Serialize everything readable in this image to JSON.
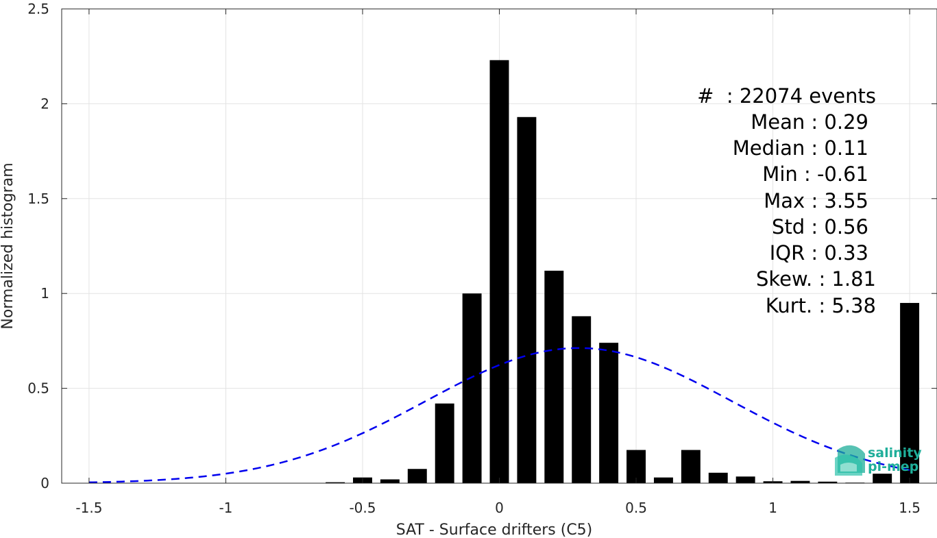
{
  "chart_data": {
    "type": "bar",
    "xlabel": "SAT - Surface drifters (C5)",
    "ylabel": "Normalized histogram",
    "xlim": [
      -1.6,
      1.6
    ],
    "ylim": [
      0,
      2.5
    ],
    "grid": true,
    "x_ticks": [
      -1.5,
      -1,
      -0.5,
      0,
      0.5,
      1,
      1.5
    ],
    "x_tick_labels": [
      "-1.5",
      "-1",
      "-0.5",
      "0",
      "0.5",
      "1",
      "1.5"
    ],
    "y_ticks": [
      0,
      0.5,
      1,
      1.5,
      2,
      2.5
    ],
    "y_tick_labels": [
      "0",
      "0.5",
      "1",
      "1.5",
      "2",
      "2.5"
    ],
    "bar_width": 0.07,
    "x": [
      -0.6,
      -0.5,
      -0.4,
      -0.3,
      -0.2,
      -0.1,
      0.0,
      0.1,
      0.2,
      0.3,
      0.4,
      0.5,
      0.6,
      0.7,
      0.8,
      0.9,
      1.0,
      1.1,
      1.2,
      1.3,
      1.4,
      1.5
    ],
    "values": [
      0.005,
      0.03,
      0.02,
      0.075,
      0.42,
      1.0,
      2.23,
      1.93,
      1.12,
      0.88,
      0.74,
      0.175,
      0.03,
      0.175,
      0.055,
      0.035,
      0.01,
      0.012,
      0.008,
      0.003,
      0.05,
      0.95
    ],
    "bar_color": "#000000",
    "fit_curve": {
      "style": "dashed",
      "color": "#0000ee",
      "mean": 0.29,
      "std": 0.56,
      "x_range": [
        -1.5,
        1.5
      ]
    },
    "stats": {
      "events": "#  : 22074 events",
      "mean": "Mean : 0.29",
      "median": "Median : 0.11",
      "min": "Min : -0.61",
      "max": "Max : 3.55",
      "std": "Std : 0.56",
      "iqr": "IQR : 0.33",
      "skew": "Skew. : 1.81",
      "kurt": "Kurt. : 5.38"
    }
  },
  "logo": {
    "line1": "salinity",
    "line2": "pi-mep",
    "accent": "#1fae9a"
  }
}
